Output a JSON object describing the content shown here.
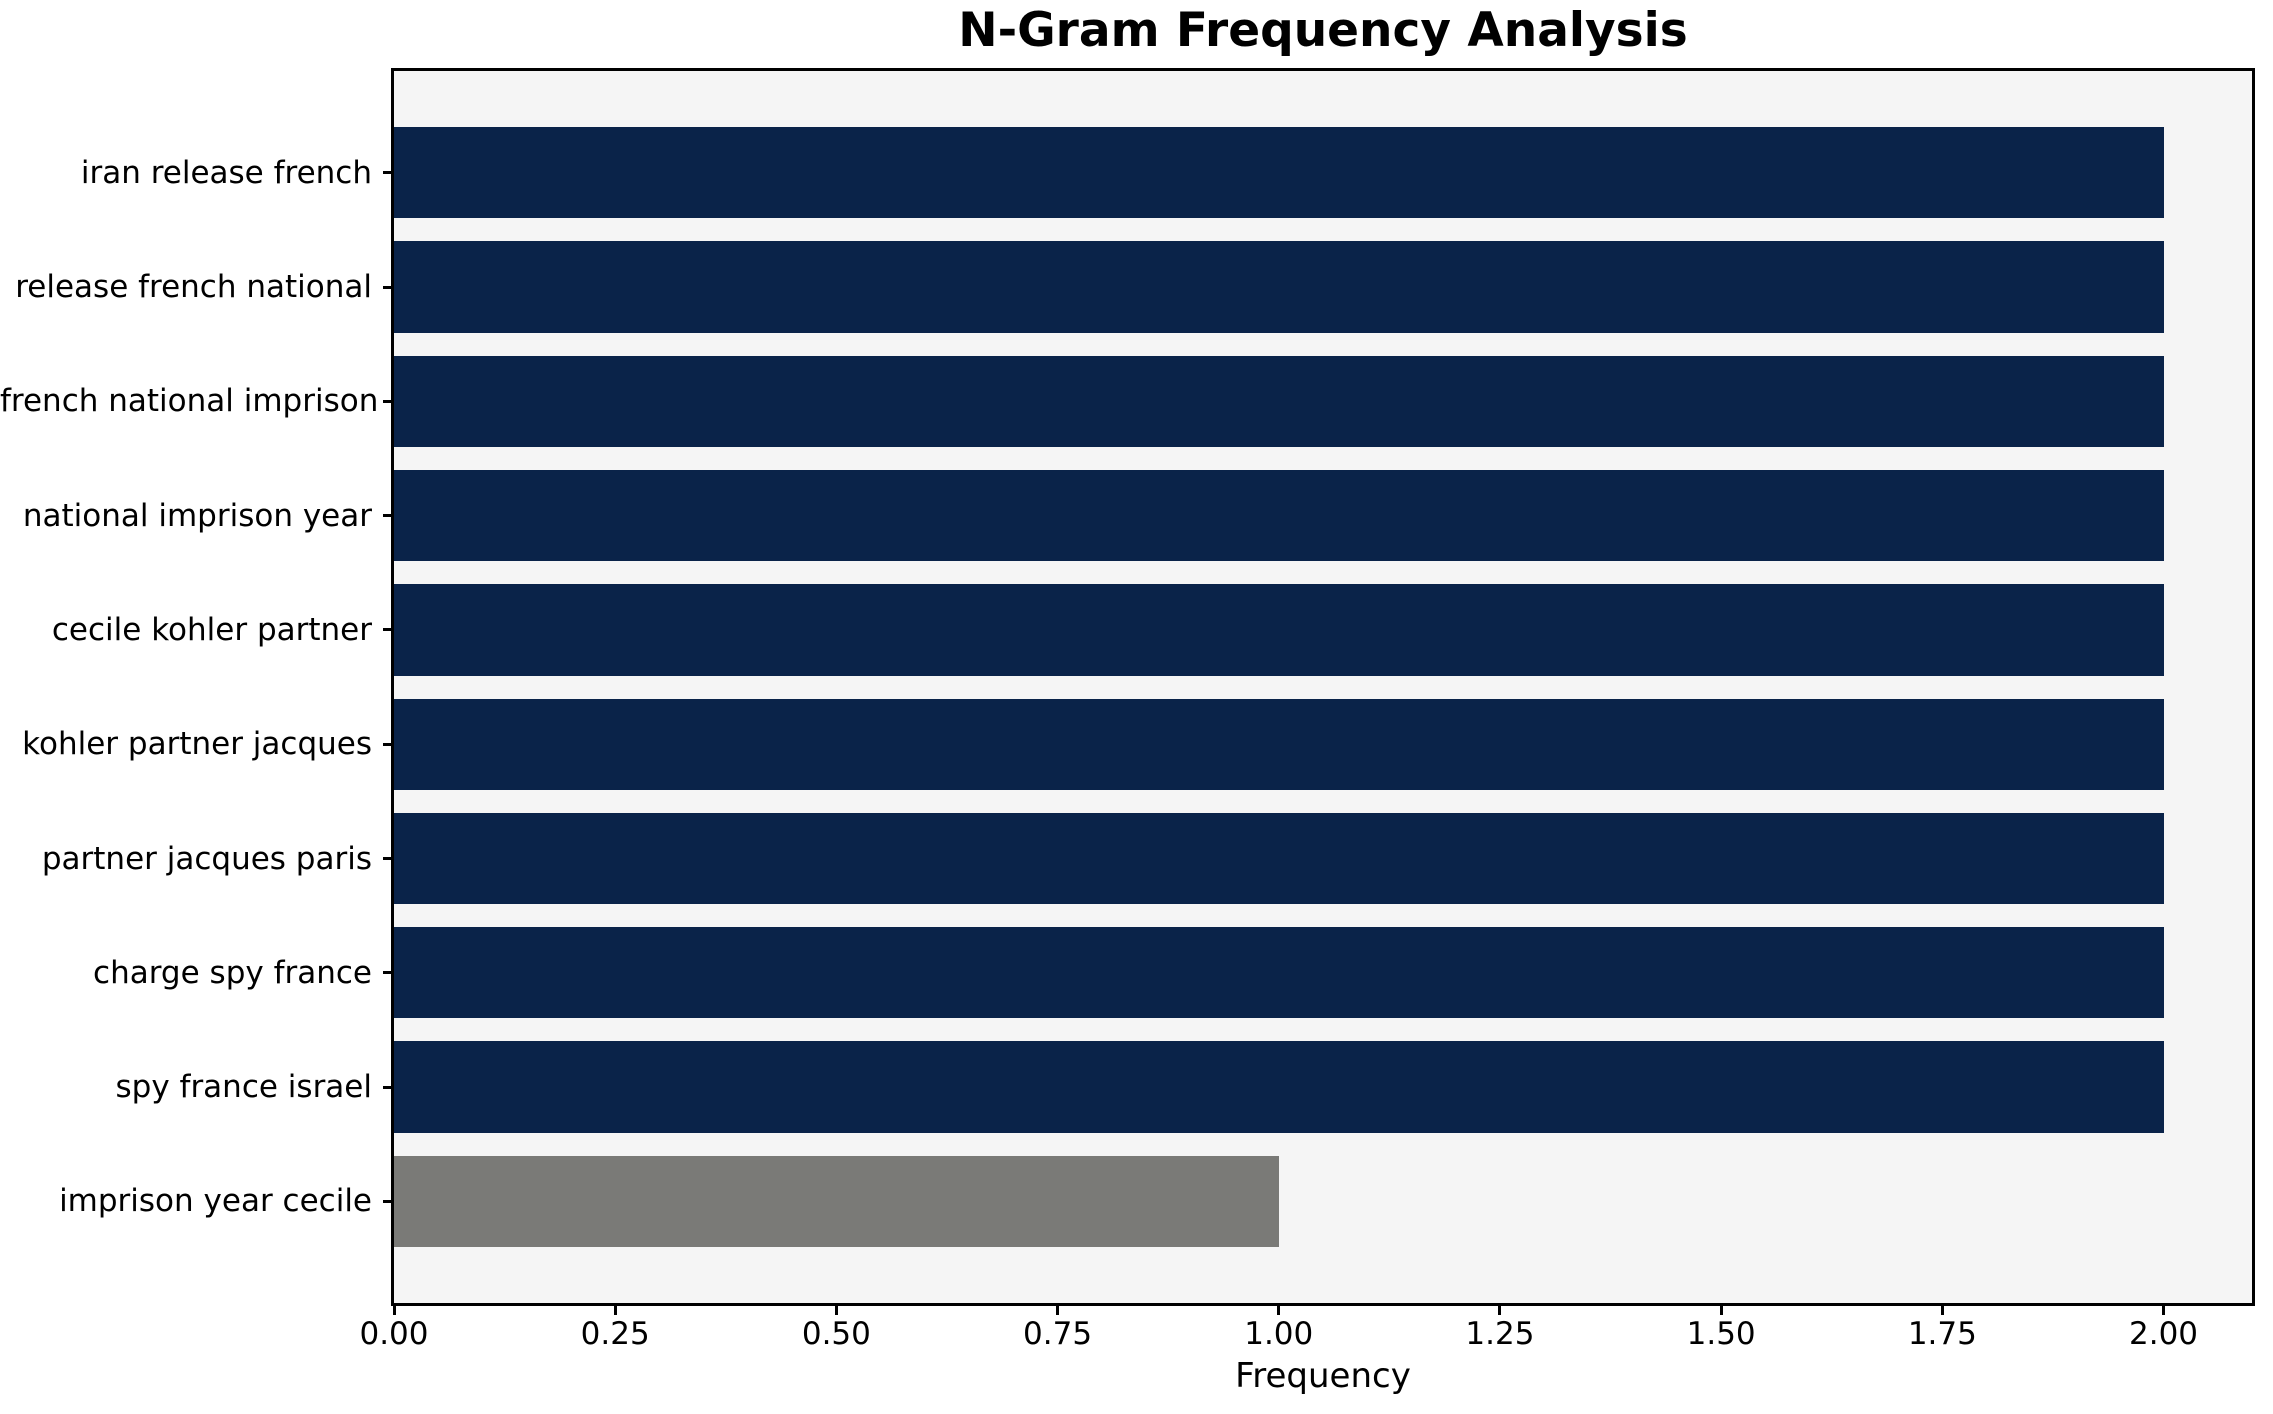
{
  "chart_data": {
    "type": "bar",
    "orientation": "horizontal",
    "title": "N-Gram Frequency Analysis",
    "xlabel": "Frequency",
    "ylabel": "",
    "categories": [
      "iran release french",
      "release french national",
      "french national imprison",
      "national imprison year",
      "cecile kohler partner",
      "kohler partner jacques",
      "partner jacques paris",
      "charge spy france",
      "spy france israel",
      "imprison year cecile"
    ],
    "values": [
      2,
      2,
      2,
      2,
      2,
      2,
      2,
      2,
      2,
      1
    ],
    "bar_colors": [
      "#0a2349",
      "#0a2349",
      "#0a2349",
      "#0a2349",
      "#0a2349",
      "#0a2349",
      "#0a2349",
      "#0a2349",
      "#0a2349",
      "#7a7a77"
    ],
    "xticks": [
      {
        "value": 0.0,
        "label": "0.00"
      },
      {
        "value": 0.25,
        "label": "0.25"
      },
      {
        "value": 0.5,
        "label": "0.50"
      },
      {
        "value": 0.75,
        "label": "0.75"
      },
      {
        "value": 1.0,
        "label": "1.00"
      },
      {
        "value": 1.25,
        "label": "1.25"
      },
      {
        "value": 1.5,
        "label": "1.50"
      },
      {
        "value": 1.75,
        "label": "1.75"
      },
      {
        "value": 2.0,
        "label": "2.00"
      }
    ],
    "xlim": [
      0,
      2.1
    ],
    "grid": false,
    "legend": null,
    "colors": {
      "bar_primary": "#0a2349",
      "bar_highlight": "#7a7a77",
      "plot_background": "#f5f5f5",
      "figure_background": "#ffffff",
      "spine": "#000000",
      "text": "#000000"
    }
  }
}
